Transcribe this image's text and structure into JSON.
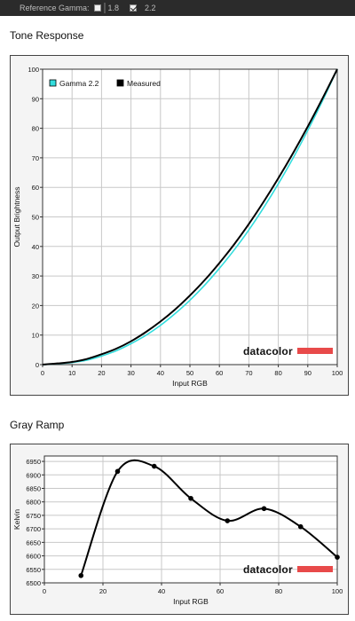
{
  "topbar": {
    "label": "Reference Gamma:",
    "options": [
      {
        "label": "1.8",
        "checked": false
      },
      {
        "label": "2.2",
        "checked": true
      }
    ]
  },
  "tone_section": {
    "title": "Tone Response"
  },
  "gray_section": {
    "title": "Gray Ramp"
  },
  "logo": {
    "text": "datacolor",
    "bar_color": "#e84a4a"
  },
  "chart_data": [
    {
      "type": "line",
      "title": "Tone Response",
      "xlabel": "Input RGB",
      "ylabel": "Output Brightness",
      "xlim": [
        0,
        100
      ],
      "ylim": [
        0,
        100
      ],
      "xticks": [
        0,
        10,
        20,
        30,
        40,
        50,
        60,
        70,
        80,
        90,
        100
      ],
      "yticks": [
        0,
        10,
        20,
        30,
        40,
        50,
        60,
        70,
        80,
        90,
        100
      ],
      "grid": true,
      "legend_position": "top-left",
      "series": [
        {
          "name": "Gamma 2.2",
          "color": "#33dddd",
          "x": [
            0,
            5,
            10,
            15,
            20,
            25,
            30,
            35,
            40,
            45,
            50,
            55,
            60,
            65,
            70,
            75,
            80,
            85,
            90,
            95,
            100
          ],
          "values": [
            0,
            0.3,
            0.7,
            1.5,
            2.9,
            4.7,
            7.1,
            9.9,
            13.3,
            17.3,
            21.8,
            26.9,
            32.6,
            38.8,
            45.6,
            53.1,
            61.2,
            69.9,
            79.3,
            89.3,
            100
          ]
        },
        {
          "name": "Measured",
          "color": "#000000",
          "x": [
            0,
            5,
            10,
            15,
            20,
            25,
            30,
            35,
            40,
            45,
            50,
            55,
            60,
            65,
            70,
            75,
            80,
            85,
            90,
            95,
            100
          ],
          "values": [
            0,
            0.4,
            0.9,
            1.9,
            3.5,
            5.4,
            7.9,
            11.0,
            14.6,
            18.7,
            23.4,
            28.6,
            34.4,
            40.7,
            47.6,
            55.1,
            63.1,
            71.6,
            80.6,
            90.1,
            100
          ]
        }
      ]
    },
    {
      "type": "line",
      "title": "Gray Ramp",
      "xlabel": "Input RGB",
      "ylabel": "Kelvin",
      "xlim": [
        0,
        100
      ],
      "ylim": [
        6500,
        6970
      ],
      "xticks": [
        0,
        20,
        40,
        60,
        80,
        100
      ],
      "yticks": [
        6500,
        6550,
        6600,
        6650,
        6700,
        6750,
        6800,
        6850,
        6900,
        6950
      ],
      "grid": true,
      "series": [
        {
          "color": "#000000",
          "x": [
            12.5,
            25,
            37.5,
            50,
            62.5,
            75,
            87.5,
            100
          ],
          "values": [
            6527,
            6913,
            6932,
            6813,
            6730,
            6775,
            6708,
            6595
          ]
        }
      ]
    }
  ]
}
